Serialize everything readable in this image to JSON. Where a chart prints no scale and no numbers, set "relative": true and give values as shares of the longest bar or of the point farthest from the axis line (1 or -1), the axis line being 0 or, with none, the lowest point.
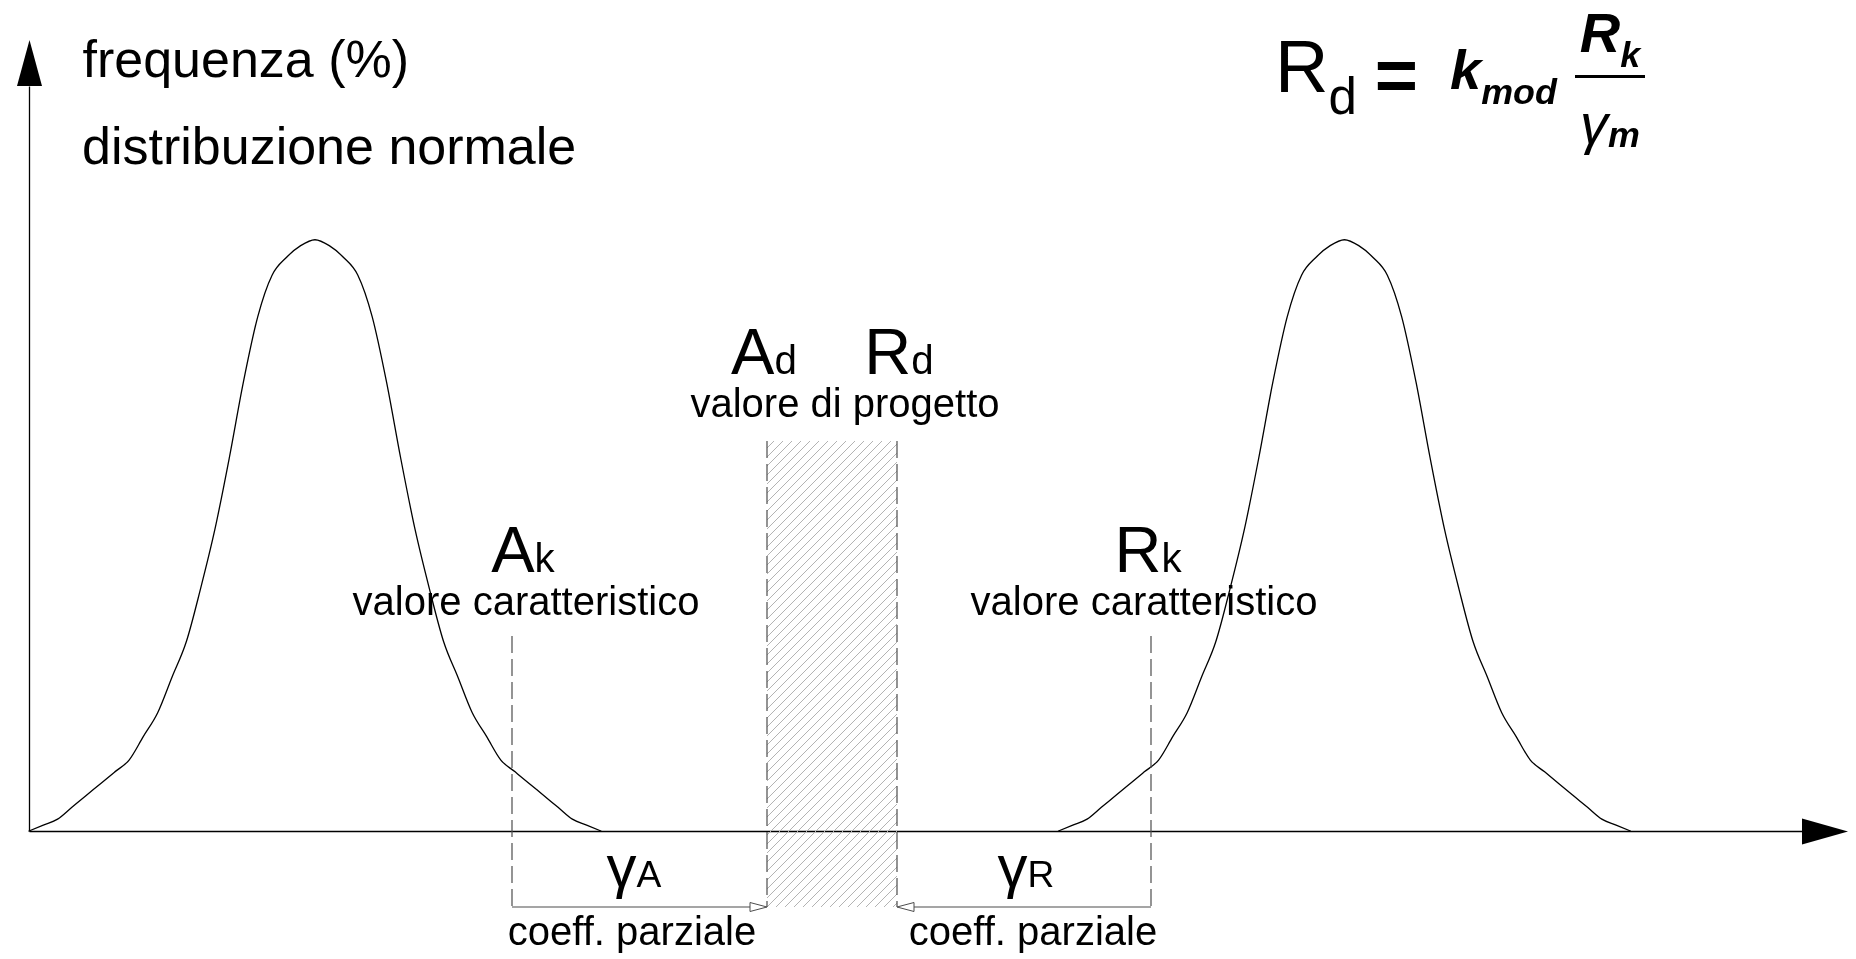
{
  "chart_data": {
    "type": "line",
    "relative": true,
    "ylabel": "frequenza (%)",
    "annotations": [
      "distribuzione normale",
      "R$_{d}$ = k$_{mod}$",
      "R$_{k}$",
      "γ$_{m}$",
      "A$_{k}$",
      "valore caratteristico",
      "A$_{d}$",
      "R$_{d}$",
      "valore di progetto",
      "R$_{k}$",
      "valore caratteristico",
      "γ$_{A}$",
      "γ$_{R}$",
      "coeff. parziale",
      "coeff. parziale"
    ],
    "categories": [
      null,
      null,
      null,
      null,
      null,
      null,
      null,
      null,
      null,
      null,
      null,
      null,
      null,
      null,
      null,
      null,
      null,
      null,
      null,
      null,
      null,
      null,
      null,
      null,
      null,
      null,
      null,
      null,
      null,
      null,
      null,
      null,
      null,
      null,
      null,
      null,
      null,
      null,
      null,
      null,
      null,
      null,
      null,
      null,
      null,
      null,
      null,
      null,
      null,
      null,
      null,
      null,
      null,
      null,
      null,
      null,
      null,
      null,
      null,
      null,
      null,
      null,
      null,
      null,
      null,
      null,
      null,
      null,
      null,
      null,
      null,
      null,
      null,
      null,
      null,
      null,
      null,
      null,
      null,
      null,
      null,
      null,
      null,
      null,
      null,
      null,
      null,
      null,
      null,
      null,
      null,
      null,
      null,
      null,
      null,
      null,
      null,
      null,
      null,
      null,
      null,
      null,
      null,
      null,
      null,
      null,
      null,
      null,
      null,
      null,
      null,
      null,
      null,
      null,
      null,
      null,
      null,
      null,
      null,
      null,
      null,
      null,
      null,
      null,
      null
    ],
    "series": [
      {
        "color": "#000000",
        "values": [
          0,
          0.01,
          0.02,
          0.04,
          0.06,
          0.08,
          0.1,
          0.12,
          0.16,
          0.2,
          0.26,
          0.32,
          0.41,
          0.51,
          0.63,
          0.76,
          0.87,
          0.94,
          0.97,
          0.99,
          1,
          0.99,
          0.97,
          0.94,
          0.87,
          0.76,
          0.63,
          0.51,
          0.41,
          0.32,
          0.26,
          0.2,
          0.16,
          0.12,
          0.1,
          0.08,
          0.06,
          0.04,
          0.02,
          0.01,
          0,
          null,
          null,
          null,
          null,
          null,
          null,
          null,
          null,
          null,
          null,
          null,
          null,
          null,
          null,
          null,
          null,
          null,
          null,
          null,
          null,
          null,
          null,
          null,
          null,
          null,
          null,
          null,
          null,
          null,
          null,
          null,
          null,
          null,
          null,
          null,
          null,
          null,
          null,
          null,
          null,
          null,
          null,
          null,
          null,
          null,
          null,
          null,
          null,
          null,
          null,
          null,
          null,
          null,
          null,
          null,
          null,
          null,
          null,
          null,
          null,
          null,
          null,
          null,
          null,
          null,
          null,
          null,
          null,
          null,
          null,
          null,
          null,
          null,
          null,
          null,
          null,
          null,
          null,
          null,
          null,
          null,
          null,
          null,
          null
        ]
      },
      {
        "color": "#000000",
        "values": [
          null,
          null,
          null,
          null,
          null,
          null,
          null,
          null,
          null,
          null,
          null,
          null,
          null,
          null,
          null,
          null,
          null,
          null,
          null,
          null,
          null,
          null,
          null,
          null,
          null,
          null,
          null,
          null,
          null,
          null,
          null,
          null,
          null,
          null,
          null,
          null,
          null,
          null,
          null,
          null,
          null,
          null,
          null,
          null,
          null,
          null,
          null,
          null,
          null,
          null,
          null,
          null,
          null,
          null,
          null,
          null,
          null,
          null,
          null,
          null,
          null,
          null,
          null,
          null,
          null,
          null,
          null,
          null,
          null,
          null,
          null,
          null,
          0,
          0.01,
          0.02,
          0.04,
          0.06,
          0.08,
          0.1,
          0.12,
          0.16,
          0.2,
          0.26,
          0.32,
          0.41,
          0.51,
          0.63,
          0.76,
          0.87,
          0.94,
          0.97,
          0.99,
          1,
          0.99,
          0.97,
          0.94,
          0.87,
          0.76,
          0.63,
          0.51,
          0.41,
          0.32,
          0.26,
          0.2,
          0.16,
          0.12,
          0.1,
          0.08,
          0.06,
          0.04,
          0.02,
          0.01,
          0,
          null,
          null,
          null,
          null,
          null,
          null,
          null,
          null,
          null,
          null,
          null,
          null
        ]
      }
    ]
  }
}
